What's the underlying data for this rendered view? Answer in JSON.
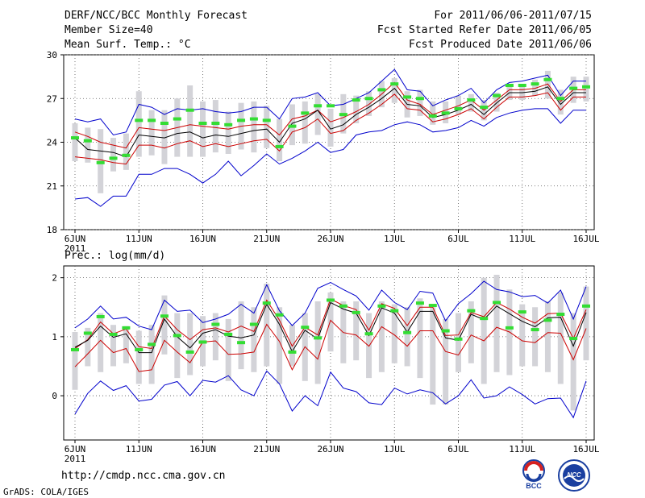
{
  "header": {
    "title": "DERF/NCC/BCC Monthly Forecast",
    "member_size": "Member Size=40",
    "variable": "Mean Surf. Temp.: °C",
    "period": "For 2011/06/06-2011/07/15",
    "refer_date": "Fcst Started Refer Date 2011/06/05",
    "produced_date": "Fcst Produced Date 2011/06/06"
  },
  "footer": {
    "url": "http://cmdp.ncc.cma.gov.cn",
    "grads_credit": "GrADS: COLA/IGES",
    "logo_bcc": "BCC",
    "logo_ncc": "NCC"
  },
  "colors": {
    "ensemble_mean": "#000000",
    "band_upper": "#cc0000",
    "band_lower": "#cc0000",
    "envelope": "#0000cc",
    "members_range": "#d3d3d8",
    "climatology": "#33dd33"
  },
  "chart_data": [
    {
      "type": "line",
      "title": "Mean Surf. Temp.: °C",
      "ylim": [
        18,
        30
      ],
      "yticks": [
        18,
        21,
        24,
        27,
        30
      ],
      "x_tick_labels": [
        "6JUN",
        "11JUN",
        "16JUN",
        "21JUN",
        "26JUN",
        "1JUL",
        "6JUL",
        "11JUL",
        "16JUL"
      ],
      "x_tick_index": [
        0,
        5,
        10,
        15,
        20,
        25,
        30,
        35,
        40
      ],
      "x_sublabel": "2011",
      "series": [
        {
          "name": "max",
          "values": [
            25.6,
            25.4,
            25.6,
            24.5,
            24.7,
            26.6,
            26.4,
            25.9,
            26.3,
            26.2,
            26.3,
            26.1,
            26.0,
            26.1,
            26.4,
            26.4,
            25.6,
            27.0,
            27.1,
            27.4,
            26.5,
            26.6,
            27.0,
            27.4,
            28.2,
            29.0,
            27.6,
            27.5,
            26.5,
            26.9,
            27.2,
            27.7,
            26.7,
            27.6,
            28.1,
            28.2,
            28.4,
            28.6,
            27.2,
            28.2,
            28.2
          ]
        },
        {
          "name": "upper",
          "values": [
            24.7,
            24.4,
            24.0,
            23.8,
            23.6,
            25.0,
            24.9,
            24.8,
            25.0,
            25.2,
            25.1,
            25.0,
            24.9,
            25.1,
            25.2,
            25.2,
            24.5,
            25.6,
            25.8,
            26.2,
            25.4,
            25.7,
            26.1,
            26.6,
            27.3,
            28.1,
            26.9,
            26.6,
            25.9,
            26.2,
            26.5,
            26.9,
            26.2,
            26.9,
            27.6,
            27.6,
            27.7,
            28.0,
            26.8,
            27.6,
            27.6
          ]
        },
        {
          "name": "mean",
          "values": [
            24.3,
            23.5,
            23.4,
            23.3,
            23.0,
            24.5,
            24.4,
            24.3,
            24.6,
            24.7,
            24.3,
            24.5,
            24.4,
            24.6,
            24.8,
            24.9,
            24.0,
            25.3,
            25.6,
            26.2,
            24.9,
            25.2,
            25.9,
            26.4,
            27.0,
            27.7,
            26.6,
            26.5,
            25.7,
            25.9,
            26.2,
            26.6,
            25.9,
            26.7,
            27.4,
            27.4,
            27.5,
            27.8,
            26.6,
            27.4,
            27.4
          ]
        },
        {
          "name": "lower",
          "values": [
            23.0,
            22.9,
            22.8,
            22.6,
            22.5,
            23.8,
            23.8,
            23.6,
            23.9,
            24.1,
            23.7,
            23.9,
            23.7,
            23.9,
            24.1,
            24.2,
            23.4,
            24.7,
            25.0,
            25.6,
            24.6,
            24.8,
            25.5,
            26.0,
            26.6,
            27.3,
            26.3,
            26.2,
            25.4,
            25.6,
            25.9,
            26.3,
            25.6,
            26.4,
            27.1,
            27.1,
            27.2,
            27.4,
            26.2,
            27.1,
            27.1
          ]
        },
        {
          "name": "min",
          "values": [
            20.1,
            20.2,
            19.6,
            20.3,
            20.3,
            21.8,
            21.8,
            22.2,
            22.2,
            21.8,
            21.2,
            21.8,
            22.7,
            21.7,
            22.4,
            23.2,
            22.5,
            22.9,
            23.4,
            24.0,
            23.3,
            23.5,
            24.5,
            24.7,
            24.8,
            25.2,
            25.4,
            25.2,
            24.7,
            24.8,
            25.0,
            25.5,
            25.1,
            25.7,
            26.0,
            26.2,
            26.3,
            26.3,
            25.3,
            26.2,
            26.2
          ]
        },
        {
          "name": "members_low",
          "values": [
            22.7,
            22.6,
            20.5,
            22.0,
            22.1,
            23.0,
            23.1,
            22.5,
            23.0,
            23.0,
            23.0,
            23.3,
            23.2,
            23.5,
            23.3,
            23.6,
            22.7,
            23.8,
            23.9,
            24.5,
            23.7,
            24.6,
            25.3,
            25.8,
            26.4,
            26.7,
            25.7,
            25.8,
            25.2,
            25.3,
            25.9,
            26.1,
            25.5,
            26.1,
            26.9,
            26.9,
            27.2,
            27.0,
            25.9,
            26.7,
            26.8
          ]
        },
        {
          "name": "members_high",
          "values": [
            25.3,
            25.0,
            24.9,
            24.3,
            24.6,
            27.5,
            26.2,
            26.2,
            27.0,
            27.9,
            26.8,
            26.9,
            26.1,
            26.7,
            26.8,
            26.5,
            25.6,
            26.6,
            26.8,
            27.3,
            26.3,
            27.3,
            27.2,
            27.5,
            28.2,
            28.4,
            27.5,
            27.6,
            26.8,
            26.8,
            27.2,
            27.3,
            26.9,
            27.4,
            27.8,
            28.0,
            28.3,
            28.9,
            27.6,
            28.5,
            28.5
          ]
        },
        {
          "name": "climatology",
          "values": [
            24.3,
            24.1,
            22.6,
            22.9,
            23.1,
            25.5,
            25.5,
            25.3,
            25.6,
            26.2,
            25.3,
            25.3,
            25.2,
            25.5,
            25.6,
            25.5,
            23.7,
            25.1,
            26.0,
            26.5,
            26.5,
            25.9,
            26.9,
            27.0,
            27.6,
            28.0,
            27.1,
            27.0,
            25.8,
            26.0,
            26.3,
            26.9,
            26.4,
            27.2,
            27.9,
            27.9,
            28.0,
            28.3,
            27.0,
            27.7,
            27.8
          ]
        }
      ]
    },
    {
      "type": "line",
      "title": "Prec.: log(mm/d)",
      "ylim": [
        -0.75,
        2.2
      ],
      "yticks": [
        0,
        1,
        2
      ],
      "x_tick_labels": [
        "6JUN",
        "11JUN",
        "16JUN",
        "21JUN",
        "26JUN",
        "1JUL",
        "6JUL",
        "11JUL",
        "16JUL"
      ],
      "x_tick_index": [
        0,
        5,
        10,
        15,
        20,
        25,
        30,
        35,
        40
      ],
      "x_sublabel": "2011",
      "series": [
        {
          "name": "max",
          "values": [
            1.15,
            1.3,
            1.52,
            1.3,
            1.33,
            1.18,
            1.12,
            1.62,
            1.43,
            1.45,
            1.24,
            1.3,
            1.38,
            1.55,
            1.4,
            1.88,
            1.44,
            1.19,
            1.4,
            1.82,
            1.92,
            1.8,
            1.69,
            1.45,
            1.79,
            1.58,
            1.46,
            1.77,
            1.74,
            1.27,
            1.56,
            1.73,
            1.94,
            1.8,
            1.76,
            1.68,
            1.7,
            1.57,
            1.79,
            1.3,
            1.85
          ]
        },
        {
          "name": "upper",
          "values": [
            0.8,
            0.95,
            1.25,
            1.05,
            1.13,
            0.83,
            0.8,
            1.35,
            1.12,
            0.95,
            1.12,
            1.15,
            1.08,
            1.18,
            1.09,
            1.62,
            1.28,
            0.84,
            1.16,
            1.03,
            1.64,
            1.53,
            1.46,
            1.11,
            1.56,
            1.48,
            1.19,
            1.5,
            1.5,
            1.02,
            1.03,
            1.41,
            1.34,
            1.58,
            1.47,
            1.33,
            1.23,
            1.39,
            1.4,
            0.97,
            1.46
          ]
        },
        {
          "name": "mean",
          "values": [
            0.82,
            0.94,
            1.18,
            0.99,
            1.05,
            0.73,
            0.73,
            1.3,
            1.0,
            0.81,
            1.06,
            1.12,
            1.01,
            0.98,
            1.03,
            1.55,
            1.21,
            0.75,
            1.11,
            0.96,
            1.58,
            1.47,
            1.4,
            1.02,
            1.49,
            1.4,
            1.08,
            1.43,
            1.43,
            0.98,
            0.94,
            1.38,
            1.29,
            1.52,
            1.39,
            1.26,
            1.17,
            1.32,
            1.33,
            0.84,
            1.41
          ]
        },
        {
          "name": "lower",
          "values": [
            0.49,
            0.71,
            0.94,
            0.73,
            0.8,
            0.41,
            0.44,
            0.94,
            0.74,
            0.56,
            0.91,
            0.93,
            0.7,
            0.71,
            0.74,
            1.21,
            0.92,
            0.44,
            0.83,
            0.62,
            1.28,
            1.07,
            1.03,
            0.84,
            1.17,
            1.03,
            0.84,
            1.1,
            1.1,
            0.75,
            0.69,
            1.03,
            0.93,
            1.16,
            1.08,
            0.93,
            0.9,
            1.07,
            1.06,
            0.61,
            1.14
          ]
        },
        {
          "name": "min",
          "values": [
            -0.31,
            0.04,
            0.25,
            0.09,
            0.17,
            -0.09,
            -0.06,
            0.18,
            0.24,
            0.0,
            0.26,
            0.23,
            0.34,
            0.1,
            0.0,
            0.42,
            0.2,
            -0.26,
            0.0,
            -0.17,
            0.4,
            0.13,
            0.07,
            -0.12,
            -0.15,
            0.13,
            0.03,
            0.1,
            0.05,
            -0.14,
            0.0,
            0.27,
            -0.04,
            0.0,
            0.15,
            0.02,
            -0.14,
            -0.05,
            -0.04,
            -0.37,
            0.25
          ]
        },
        {
          "name": "members_low",
          "values": [
            0.1,
            0.5,
            0.4,
            0.5,
            0.55,
            0.2,
            0.2,
            0.7,
            0.3,
            0.35,
            0.5,
            0.6,
            0.25,
            0.45,
            0.4,
            0.5,
            0.2,
            0.5,
            0.25,
            0.2,
            0.75,
            0.55,
            0.6,
            0.3,
            0.4,
            0.55,
            0.5,
            0.3,
            -0.15,
            -0.15,
            0.4,
            0.55,
            0.2,
            0.4,
            0.35,
            0.5,
            0.5,
            0.4,
            0.2,
            -0.25,
            0.6
          ]
        },
        {
          "name": "members_high",
          "values": [
            1.08,
            1.15,
            1.4,
            1.2,
            1.18,
            1.1,
            1.2,
            1.7,
            1.4,
            1.4,
            1.35,
            1.4,
            1.3,
            1.6,
            1.5,
            1.9,
            1.5,
            1.2,
            1.4,
            1.6,
            1.75,
            1.6,
            1.6,
            1.4,
            1.6,
            1.55,
            1.5,
            1.65,
            1.5,
            1.3,
            1.4,
            1.6,
            2.0,
            2.05,
            1.8,
            1.55,
            1.5,
            1.6,
            1.75,
            1.4,
            1.85
          ]
        },
        {
          "name": "climatology",
          "values": [
            0.78,
            1.06,
            1.34,
            1.04,
            1.15,
            0.78,
            0.87,
            1.35,
            1.02,
            0.74,
            0.91,
            1.21,
            1.04,
            0.9,
            1.21,
            1.57,
            1.37,
            0.74,
            1.16,
            0.98,
            1.62,
            1.52,
            1.41,
            1.05,
            1.52,
            1.44,
            1.07,
            1.57,
            1.53,
            1.1,
            0.96,
            1.44,
            1.31,
            1.58,
            1.15,
            1.42,
            1.12,
            1.28,
            1.38,
            0.97,
            1.52
          ]
        }
      ]
    }
  ]
}
